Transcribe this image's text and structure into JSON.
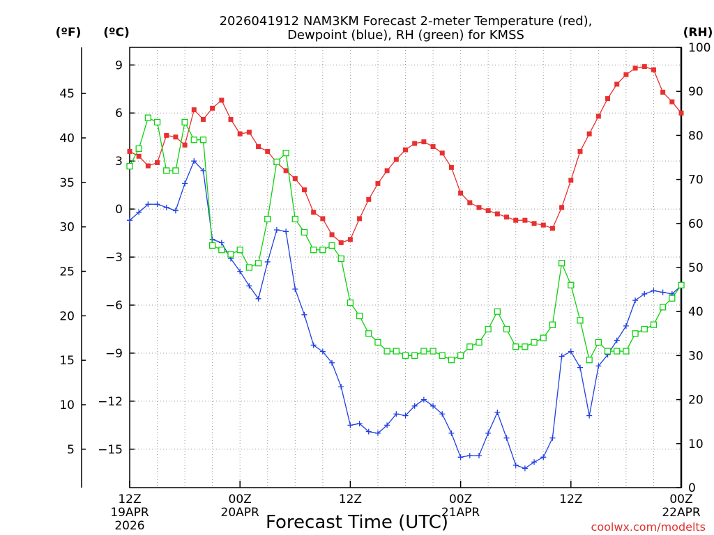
{
  "chart_data": {
    "type": "line",
    "title_lines": [
      "2026041912 NAM3KM Forecast 2-meter Temperature (red),",
      "Dewpoint (blue), RH (green) for KMSS"
    ],
    "xlabel": "Forecast Time (UTC)",
    "credit": "coolwx.com/modelts",
    "unit_labels": {
      "fahrenheit": "(ºF)",
      "celsius": "(ºC)",
      "rh": "(RH)"
    },
    "x_range_hours": [
      0,
      60
    ],
    "x_ticks": [
      {
        "hour": 0,
        "lines": [
          "12Z",
          "19APR",
          "2026"
        ]
      },
      {
        "hour": 12,
        "lines": [
          "00Z",
          "20APR"
        ]
      },
      {
        "hour": 24,
        "lines": [
          "12Z"
        ]
      },
      {
        "hour": 36,
        "lines": [
          "00Z",
          "21APR"
        ]
      },
      {
        "hour": 48,
        "lines": [
          "12Z"
        ]
      },
      {
        "hour": 60,
        "lines": [
          "00Z",
          "22APR"
        ]
      }
    ],
    "celsius_axis": {
      "range": [
        -17.4,
        10.1
      ],
      "ticks": [
        9,
        6,
        3,
        0,
        -3,
        -6,
        -9,
        -12,
        -15
      ],
      "tick_labels": [
        "9",
        "6",
        "3",
        "0",
        "−3",
        "−6",
        "−9",
        "−12",
        "−15"
      ]
    },
    "fahrenheit_axis": {
      "ticks": [
        45,
        40,
        35,
        30,
        25,
        20,
        15,
        10,
        5
      ],
      "tick_labels": [
        "45",
        "40",
        "35",
        "30",
        "25",
        "20",
        "15",
        "10",
        "5"
      ]
    },
    "rh_axis": {
      "range": [
        0,
        100
      ],
      "ticks": [
        0,
        10,
        20,
        30,
        40,
        50,
        60,
        70,
        80,
        90,
        100
      ],
      "tick_labels": [
        "0",
        "10",
        "20",
        "30",
        "40",
        "50",
        "60",
        "70",
        "80",
        "90",
        "100"
      ]
    },
    "series": [
      {
        "name": "Temperature",
        "unit": "C",
        "color": "#e83030",
        "marker": "filled-square",
        "values": [
          3.6,
          3.3,
          2.7,
          2.9,
          4.6,
          4.5,
          4.0,
          6.2,
          5.6,
          6.3,
          6.8,
          5.6,
          4.7,
          4.8,
          3.9,
          3.6,
          2.9,
          2.4,
          1.9,
          1.2,
          -0.2,
          -0.6,
          -1.6,
          -2.1,
          -1.9,
          -0.6,
          0.6,
          1.6,
          2.4,
          3.1,
          3.7,
          4.1,
          4.2,
          3.9,
          3.5,
          2.6,
          1.0,
          0.4,
          0.1,
          -0.1,
          -0.3,
          -0.5,
          -0.7,
          -0.7,
          -0.9,
          -1.0,
          -1.2,
          0.1,
          1.8,
          3.6,
          4.7,
          5.8,
          6.9,
          7.8,
          8.4,
          8.8,
          8.9,
          8.7,
          7.3,
          6.7,
          6.0
        ]
      },
      {
        "name": "Dewpoint",
        "unit": "C",
        "color": "#2040e0",
        "marker": "plus",
        "values": [
          -0.7,
          -0.2,
          0.3,
          0.3,
          0.1,
          -0.1,
          1.6,
          3.0,
          2.4,
          -1.9,
          -2.1,
          -3.1,
          -3.9,
          -4.8,
          -5.6,
          -3.3,
          -1.3,
          -1.4,
          -5.0,
          -6.6,
          -8.5,
          -8.9,
          -9.6,
          -11.1,
          -13.5,
          -13.4,
          -13.9,
          -14.0,
          -13.5,
          -12.8,
          -12.9,
          -12.3,
          -11.9,
          -12.3,
          -12.8,
          -14.0,
          -15.5,
          -15.4,
          -15.4,
          -14.0,
          -12.7,
          -14.3,
          -16.0,
          -16.2,
          -15.8,
          -15.5,
          -14.3,
          -9.2,
          -8.9,
          -9.9,
          -12.9,
          -9.8,
          -9.1,
          -8.2,
          -7.3,
          -5.7,
          -5.3,
          -5.1,
          -5.2,
          -5.3,
          -4.8
        ]
      },
      {
        "name": "RH",
        "unit": "%",
        "color": "#10d010",
        "marker": "open-square",
        "values": [
          73,
          77,
          84,
          83,
          72,
          72,
          83,
          79,
          79,
          55,
          54,
          53,
          54,
          50,
          51,
          61,
          74,
          76,
          61,
          58,
          54,
          54,
          55,
          52,
          42,
          39,
          35,
          33,
          31,
          31,
          30,
          30,
          31,
          31,
          30,
          29,
          30,
          32,
          33,
          36,
          40,
          36,
          32,
          32,
          33,
          34,
          37,
          51,
          46,
          38,
          29,
          33,
          31,
          31,
          31,
          35,
          36,
          37,
          41,
          43,
          46
        ]
      }
    ]
  }
}
